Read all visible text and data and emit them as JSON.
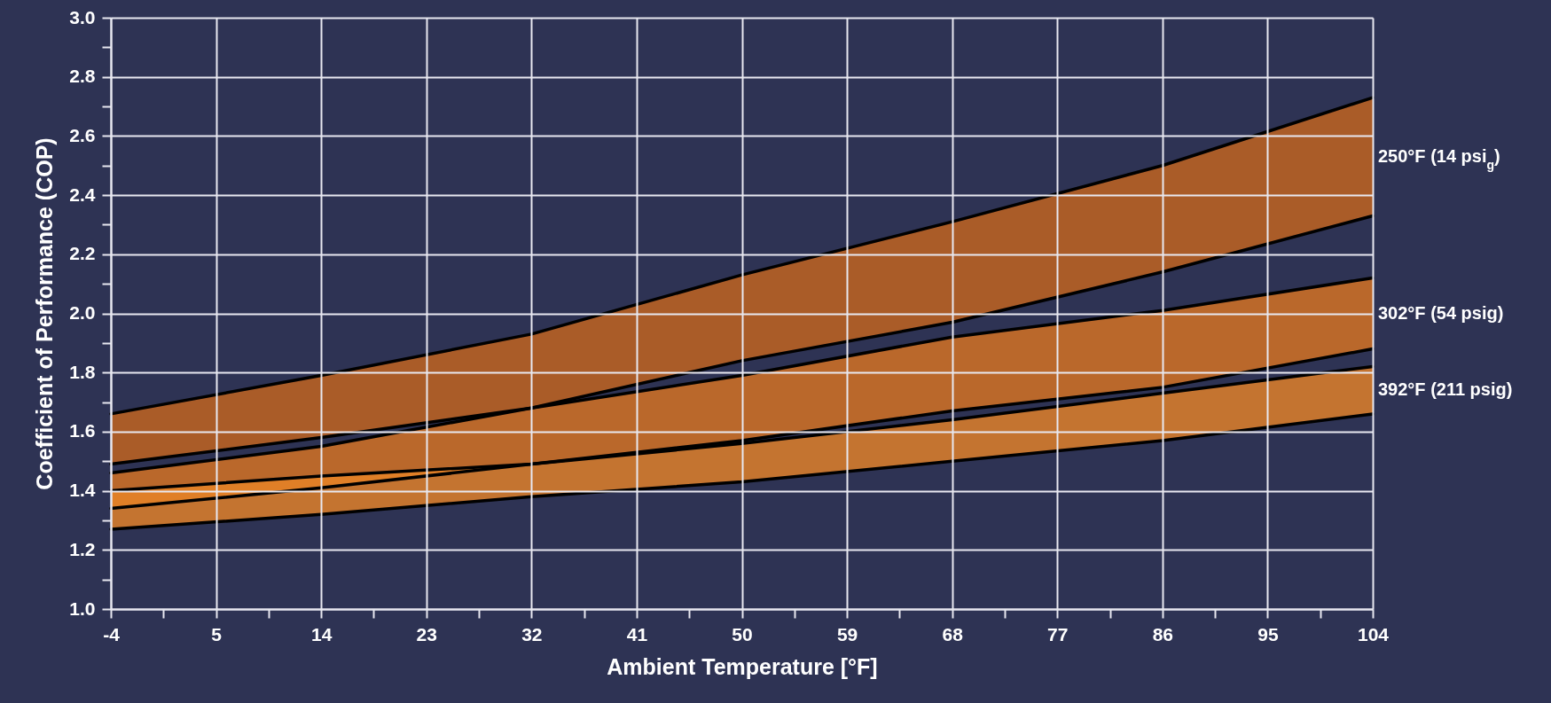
{
  "chart_data": {
    "type": "line",
    "marker": "none",
    "xlabel": "Ambient Temperature [°F]",
    "ylabel": "Coefficient of Performance (COP)",
    "x": [
      -4,
      14,
      32,
      50,
      68,
      86,
      104
    ],
    "series": [
      {
        "name": "250°F (14 psi$_{g}$)",
        "color": "#000000",
        "values": [
          1.66,
          1.79,
          1.93,
          2.13,
          2.31,
          2.5,
          2.73
        ],
        "upper": [
          1.66,
          1.79,
          1.93,
          2.13,
          2.31,
          2.5,
          2.73
        ],
        "lower": [
          1.49,
          1.58,
          1.68,
          1.84,
          1.97,
          2.14,
          2.33
        ]
      },
      {
        "color": "#000000",
        "values": [
          1.49,
          1.58,
          1.68,
          1.84,
          1.97,
          2.14,
          2.33
        ]
      },
      {
        "name": "302°F (54 psig)",
        "color": "#000000",
        "values": [
          1.46,
          1.55,
          1.68,
          1.79,
          1.92,
          2.01,
          2.12
        ],
        "upper": [
          1.46,
          1.55,
          1.68,
          1.79,
          1.92,
          2.01,
          2.12
        ],
        "lower": [
          1.34,
          1.41,
          1.49,
          1.57,
          1.67,
          1.75,
          1.88
        ]
      },
      {
        "color": "#000000",
        "values": [
          1.34,
          1.41,
          1.49,
          1.57,
          1.67,
          1.75,
          1.88
        ]
      },
      {
        "name": "392°F (211 psig)",
        "color": "#000000",
        "values": [
          1.4,
          1.45,
          1.49,
          1.56,
          1.64,
          1.73,
          1.82
        ],
        "upper": [
          1.4,
          1.45,
          1.49,
          1.56,
          1.64,
          1.73,
          1.82
        ],
        "lower": [
          1.27,
          1.32,
          1.38,
          1.43,
          1.5,
          1.57,
          1.66
        ]
      },
      {
        "color": "#000000",
        "values": [
          1.27,
          1.32,
          1.38,
          1.43,
          1.5,
          1.57,
          1.66
        ]
      }
    ],
    "xlim": [
      -4,
      104
    ],
    "xticks": [
      -4,
      {
        "value": 0.5,
        "label": null
      },
      5,
      {
        "value": 9.5,
        "label": null
      },
      14,
      {
        "value": 18.5,
        "label": null
      },
      23,
      {
        "value": 27.5,
        "label": null
      },
      32,
      {
        "value": 36.5,
        "label": null
      },
      41,
      {
        "value": 45.5,
        "label": null
      },
      50,
      {
        "value": 54.5,
        "label": null
      },
      59,
      {
        "value": 63.5,
        "label": null
      },
      68,
      {
        "value": 72.5,
        "label": null
      },
      77,
      {
        "value": 81.5,
        "label": null
      },
      86,
      {
        "value": 90.5,
        "label": null
      },
      95,
      {
        "value": 99.5,
        "label": null
      },
      104
    ],
    "ylim": [
      1,
      3
    ],
    "yticks": [
      {
        "value": 1,
        "label": "1.0"
      },
      {
        "value": 1.1,
        "label": null
      },
      {
        "value": 1.2,
        "label": "1.2"
      },
      {
        "value": 1.3,
        "label": null
      },
      {
        "value": 1.4,
        "label": "1.4"
      },
      {
        "value": 1.5,
        "label": null
      },
      {
        "value": 1.6,
        "label": "1.6"
      },
      {
        "value": 1.7,
        "label": null
      },
      {
        "value": 1.8,
        "label": "1.8"
      },
      {
        "value": 1.9,
        "label": null
      },
      {
        "value": 2,
        "label": "2.0"
      },
      {
        "value": 2.1,
        "label": null
      },
      {
        "value": 2.2,
        "label": "2.2"
      },
      {
        "value": 2.3,
        "label": null
      },
      {
        "value": 2.4,
        "label": "2.4"
      },
      {
        "value": 2.5,
        "label": null
      },
      {
        "value": 2.6,
        "label": "2.6"
      },
      {
        "value": 2.7,
        "label": null
      },
      {
        "value": 2.8,
        "label": "2.8"
      },
      {
        "value": 2.9,
        "label": null
      },
      {
        "value": 3,
        "label": "3.0"
      }
    ],
    "grid": true
  }
}
